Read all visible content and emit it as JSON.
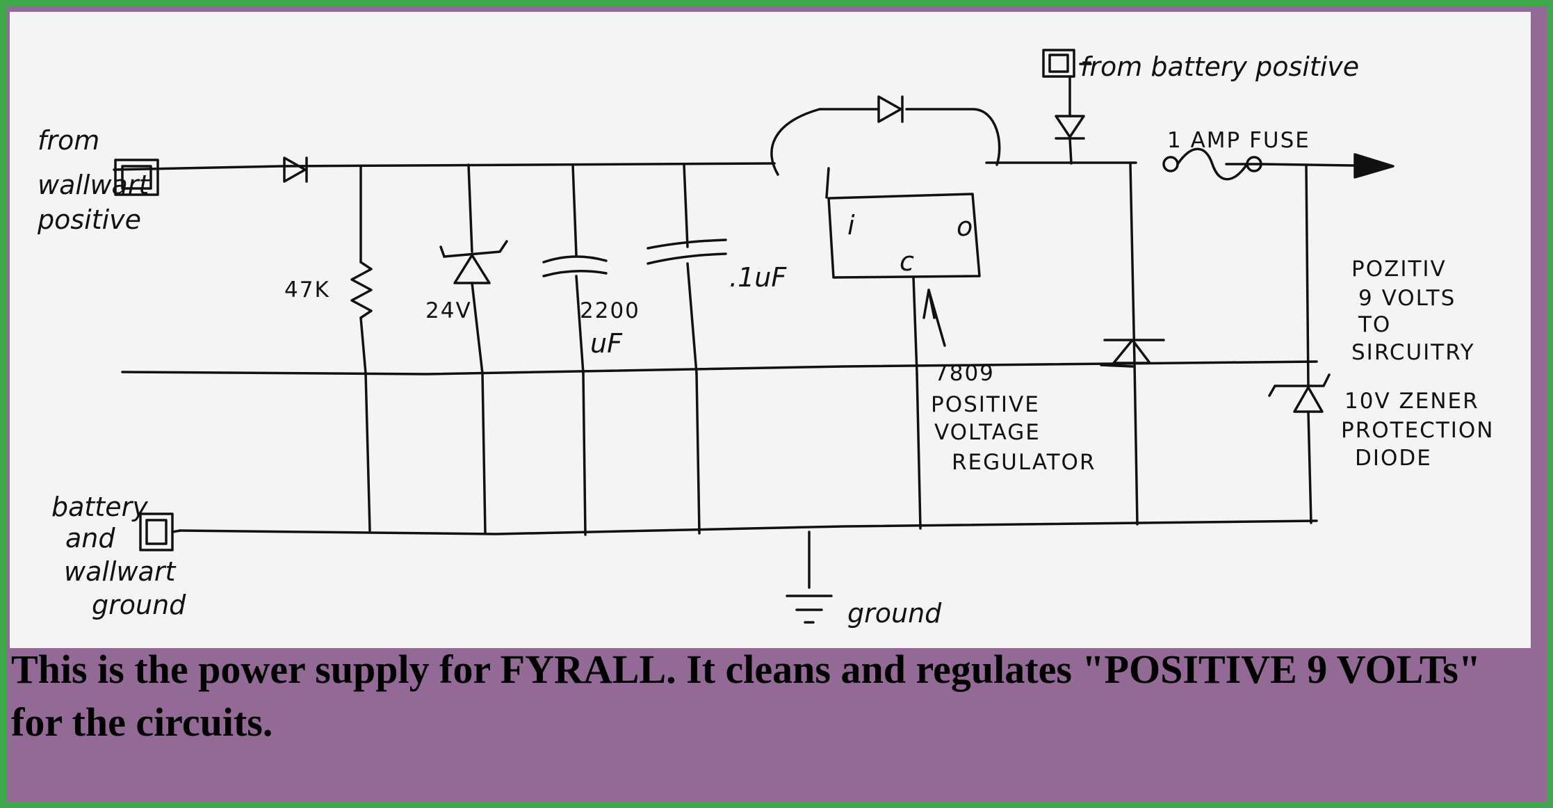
{
  "schematic": {
    "labels": {
      "wallwart_input": [
        "from",
        "wallwart",
        "positive"
      ],
      "resistor": "47K",
      "zener_input": "24V",
      "cap_large": [
        "2200",
        "uF"
      ],
      "cap_small": ".1uF",
      "regulator_pin_in": "i",
      "regulator_pin_common": "c",
      "regulator_pin_out": "o",
      "regulator_desc": [
        "7809",
        "POSITIVE",
        "VOLTAGE",
        "REGULATOR"
      ],
      "battery_input": "from battery positive",
      "fuse": "1 AMP FUSE",
      "output": [
        "POZITIV",
        "9 VOLTS",
        "TO",
        "SIRCUITRY"
      ],
      "zener_protection": [
        "10V ZENER",
        "PROTECTION",
        "DIODE"
      ],
      "ground_input": [
        "battery",
        "and",
        "wallwart",
        "ground"
      ],
      "ground_symbol": "ground"
    }
  },
  "caption": {
    "text": "This is the power supply for FYRALL. It cleans and regulates \"POSITIVE 9 VOLTs\" for the circuits."
  }
}
